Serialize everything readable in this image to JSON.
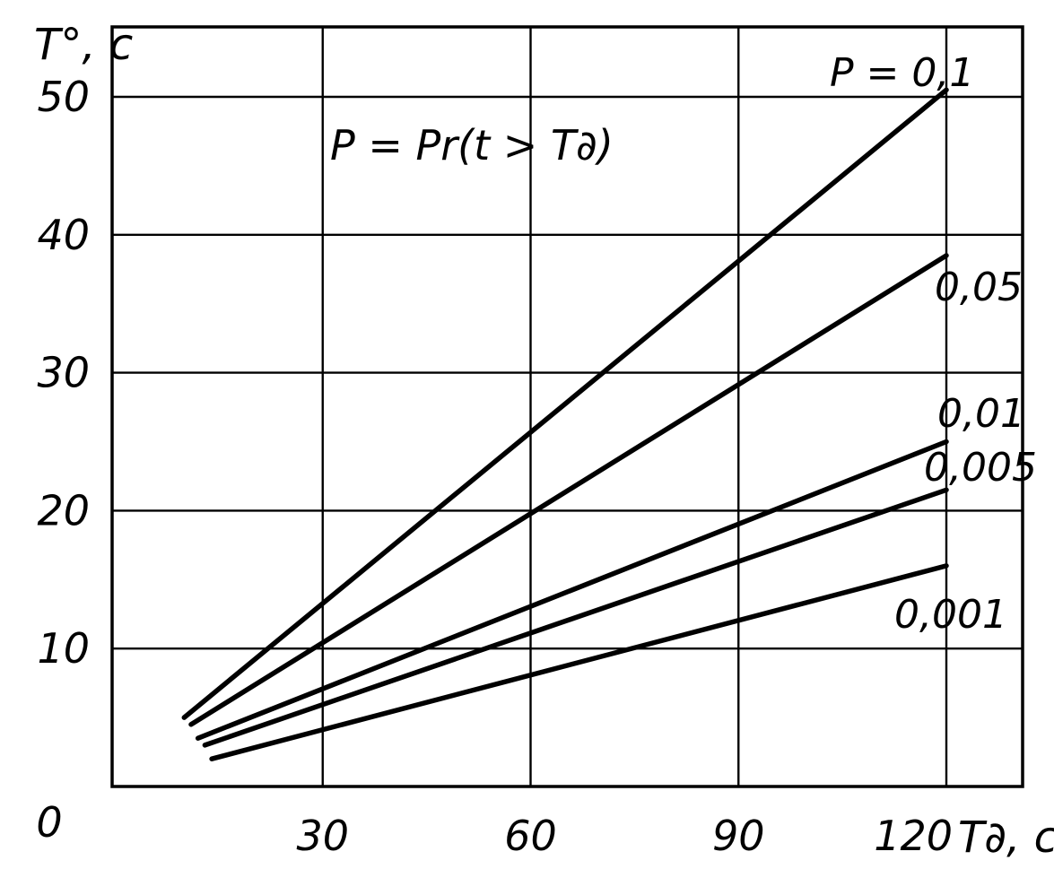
{
  "chart_data": {
    "type": "line",
    "title": "",
    "formula_annotation": "P = Pr(t > T∂)",
    "xlabel": "T∂, c",
    "ylabel": "T°, c",
    "origin_label": "0",
    "x_ticks": [
      "30",
      "60",
      "90",
      "120"
    ],
    "y_ticks": [
      "10",
      "20",
      "30",
      "40",
      "50"
    ],
    "xlim": [
      0,
      130
    ],
    "ylim": [
      0,
      55
    ],
    "grid": true,
    "series": [
      {
        "name": "P = 0,1",
        "x": [
          10,
          120
        ],
        "y": [
          5,
          50.5
        ]
      },
      {
        "name": "0,05",
        "x": [
          11,
          120
        ],
        "y": [
          4.5,
          38.5
        ]
      },
      {
        "name": "0,01",
        "x": [
          12,
          120
        ],
        "y": [
          3.5,
          25
        ]
      },
      {
        "name": "0,005",
        "x": [
          13,
          120
        ],
        "y": [
          3,
          21.5
        ]
      },
      {
        "name": "0,001",
        "x": [
          14,
          120
        ],
        "y": [
          2,
          16
        ]
      }
    ]
  }
}
